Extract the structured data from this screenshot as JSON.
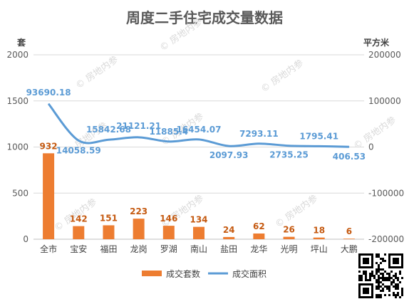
{
  "chart_data": {
    "type": "bar",
    "title": "周度二手住宅成交量数据",
    "ylabel_left": "套",
    "ylabel_right": "平方米",
    "categories": [
      "全市",
      "宝安",
      "福田",
      "龙岗",
      "罗湖",
      "南山",
      "盐田",
      "龙华",
      "光明",
      "坪山",
      "大鹏"
    ],
    "left_axis": {
      "ylim": [
        0,
        2000
      ],
      "ticks": [
        "0",
        "500",
        "1000",
        "1500",
        "2000"
      ]
    },
    "right_axis": {
      "ylim": [
        -200000,
        200000
      ],
      "ticks": [
        "-200000",
        "-100000",
        "0",
        "100000",
        "200000"
      ]
    },
    "grid": true,
    "legend_position": "bottom",
    "series": [
      {
        "name": "成交套数",
        "type": "bar",
        "axis": "left",
        "color": "#ed7d31",
        "values": [
          932,
          142,
          151,
          223,
          146,
          134,
          24,
          62,
          26,
          18,
          6
        ],
        "labels": [
          "932",
          "142",
          "151",
          "223",
          "146",
          "134",
          "24",
          "62",
          "26",
          "18",
          "6"
        ]
      },
      {
        "name": "成交面积",
        "type": "line",
        "axis": "right",
        "color": "#5b9bd5",
        "values": [
          93690.18,
          14058.59,
          15842.68,
          21121.21,
          11885.4,
          16454.07,
          2097.93,
          7293.11,
          2735.25,
          1795.41,
          406.53
        ],
        "labels": [
          "93690.18",
          "14058.59",
          "15842.68",
          "21121.21",
          "11885.4",
          "16454.07",
          "2097.93",
          "7293.11",
          "2735.25",
          "1795.41",
          "406.53"
        ]
      }
    ]
  },
  "watermark": "房地内参"
}
